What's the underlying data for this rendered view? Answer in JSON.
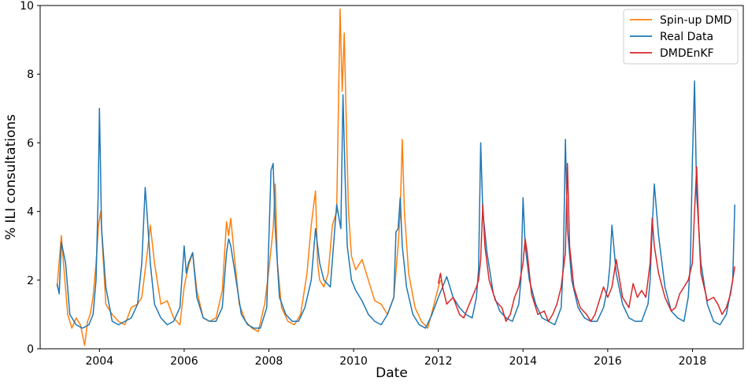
{
  "chart_data": {
    "type": "line",
    "title": "",
    "xlabel": "Date",
    "ylabel": "% ILI consultations",
    "xlim": [
      2002.6,
      2019.2
    ],
    "ylim": [
      0,
      10
    ],
    "xticks": [
      2004,
      2006,
      2008,
      2010,
      2012,
      2014,
      2016,
      2018
    ],
    "yticks": [
      0,
      2,
      4,
      6,
      8,
      10
    ],
    "grid": false,
    "legend_position": "top-right",
    "series": [
      {
        "name": "Spin-up DMD",
        "color": "#ff7f0e",
        "x": [
          2003.0,
          2003.1,
          2003.15,
          2003.25,
          2003.35,
          2003.45,
          2003.55,
          2003.65,
          2003.72,
          2003.78,
          2003.85,
          2003.92,
          2003.98,
          2004.03,
          2004.08,
          2004.15,
          2004.3,
          2004.45,
          2004.6,
          2004.75,
          2004.9,
          2005.0,
          2005.1,
          2005.2,
          2005.3,
          2005.45,
          2005.6,
          2005.75,
          2005.9,
          2006.0,
          2006.1,
          2006.2,
          2006.3,
          2006.45,
          2006.6,
          2006.75,
          2006.9,
          2007.0,
          2007.05,
          2007.1,
          2007.2,
          2007.3,
          2007.45,
          2007.6,
          2007.75,
          2007.9,
          2008.0,
          2008.1,
          2008.15,
          2008.2,
          2008.3,
          2008.45,
          2008.6,
          2008.75,
          2008.9,
          2009.0,
          2009.1,
          2009.15,
          2009.2,
          2009.3,
          2009.4,
          2009.5,
          2009.6,
          2009.68,
          2009.73,
          2009.78,
          2009.83,
          2009.88,
          2009.95,
          2010.05,
          2010.2,
          2010.35,
          2010.5,
          2010.65,
          2010.8,
          2010.95,
          2011.05,
          2011.1,
          2011.15,
          2011.2,
          2011.3,
          2011.45,
          2011.6,
          2011.75,
          2011.9,
          2012.0,
          2012.05
        ],
        "y": [
          1.8,
          3.3,
          2.5,
          1.0,
          0.6,
          0.9,
          0.7,
          0.1,
          0.8,
          1.0,
          1.5,
          2.5,
          3.6,
          4.0,
          2.8,
          1.3,
          1.0,
          0.8,
          0.7,
          1.2,
          1.3,
          1.5,
          2.5,
          3.6,
          2.5,
          1.3,
          1.4,
          0.9,
          0.7,
          1.8,
          2.4,
          2.8,
          1.7,
          0.9,
          0.8,
          0.9,
          1.7,
          3.7,
          3.3,
          3.8,
          2.5,
          1.3,
          0.8,
          0.6,
          0.5,
          1.3,
          2.3,
          3.5,
          4.8,
          2.5,
          1.2,
          0.8,
          0.7,
          1.0,
          2.2,
          3.6,
          4.6,
          2.5,
          2.0,
          1.8,
          2.2,
          3.6,
          4.0,
          9.9,
          7.5,
          9.2,
          6.5,
          4.0,
          2.7,
          2.3,
          2.6,
          2.0,
          1.4,
          1.3,
          1.0,
          1.5,
          3.0,
          4.0,
          6.1,
          4.0,
          2.2,
          1.2,
          0.8,
          0.6,
          1.3,
          1.8,
          2.0
        ]
      },
      {
        "name": "Real Data",
        "color": "#1f77b4",
        "x": [
          2003.0,
          2003.05,
          2003.1,
          2003.2,
          2003.3,
          2003.45,
          2003.6,
          2003.75,
          2003.85,
          2003.92,
          2003.97,
          2004.0,
          2004.05,
          2004.15,
          2004.3,
          2004.45,
          2004.6,
          2004.75,
          2004.9,
          2005.0,
          2005.08,
          2005.12,
          2005.2,
          2005.3,
          2005.45,
          2005.6,
          2005.75,
          2005.9,
          2006.0,
          2006.05,
          2006.1,
          2006.2,
          2006.3,
          2006.45,
          2006.6,
          2006.75,
          2006.9,
          2007.0,
          2007.05,
          2007.1,
          2007.2,
          2007.35,
          2007.5,
          2007.65,
          2007.8,
          2007.95,
          2008.05,
          2008.1,
          2008.15,
          2008.25,
          2008.4,
          2008.55,
          2008.7,
          2008.85,
          2009.0,
          2009.1,
          2009.2,
          2009.3,
          2009.45,
          2009.6,
          2009.7,
          2009.75,
          2009.8,
          2009.85,
          2009.95,
          2010.05,
          2010.2,
          2010.35,
          2010.5,
          2010.65,
          2010.8,
          2010.95,
          2011.0,
          2011.05,
          2011.1,
          2011.15,
          2011.25,
          2011.4,
          2011.55,
          2011.7,
          2011.85,
          2012.0,
          2012.1,
          2012.2,
          2012.35,
          2012.5,
          2012.65,
          2012.8,
          2012.9,
          2012.95,
          2013.0,
          2013.05,
          2013.15,
          2013.3,
          2013.45,
          2013.6,
          2013.75,
          2013.9,
          2013.95,
          2014.0,
          2014.05,
          2014.15,
          2014.3,
          2014.45,
          2014.6,
          2014.75,
          2014.9,
          2014.95,
          2015.0,
          2015.05,
          2015.15,
          2015.3,
          2015.45,
          2015.6,
          2015.75,
          2015.9,
          2016.0,
          2016.05,
          2016.1,
          2016.2,
          2016.35,
          2016.5,
          2016.65,
          2016.8,
          2016.95,
          2017.0,
          2017.05,
          2017.1,
          2017.2,
          2017.35,
          2017.5,
          2017.65,
          2017.8,
          2017.9,
          2017.95,
          2018.0,
          2018.05,
          2018.1,
          2018.2,
          2018.35,
          2018.5,
          2018.65,
          2018.8,
          2018.95,
          2019.0
        ],
        "y": [
          1.9,
          1.6,
          3.1,
          2.5,
          1.0,
          0.7,
          0.6,
          0.7,
          1.0,
          2.0,
          4.5,
          7.0,
          3.5,
          1.8,
          0.8,
          0.7,
          0.8,
          0.9,
          1.3,
          2.5,
          4.7,
          4.0,
          2.5,
          1.3,
          0.9,
          0.7,
          0.8,
          1.2,
          3.0,
          2.2,
          2.5,
          2.8,
          1.5,
          0.9,
          0.8,
          0.8,
          1.2,
          2.8,
          3.2,
          3.0,
          2.2,
          1.0,
          0.7,
          0.6,
          0.6,
          1.2,
          5.2,
          5.4,
          3.5,
          1.5,
          1.0,
          0.8,
          0.8,
          1.2,
          2.0,
          3.5,
          2.5,
          2.0,
          1.8,
          4.2,
          3.5,
          7.4,
          5.0,
          3.0,
          2.0,
          1.7,
          1.4,
          1.0,
          0.8,
          0.7,
          1.0,
          1.5,
          3.4,
          3.5,
          4.4,
          3.0,
          1.8,
          1.0,
          0.7,
          0.6,
          1.0,
          1.5,
          1.8,
          2.1,
          1.5,
          1.2,
          1.0,
          0.9,
          1.5,
          2.3,
          6.0,
          4.0,
          2.8,
          1.6,
          1.1,
          0.9,
          0.8,
          1.3,
          2.0,
          4.4,
          3.0,
          2.0,
          1.3,
          0.9,
          0.8,
          0.7,
          1.2,
          2.5,
          6.1,
          3.5,
          2.0,
          1.2,
          0.9,
          0.8,
          0.8,
          1.2,
          1.8,
          2.4,
          3.6,
          2.2,
          1.3,
          0.9,
          0.8,
          0.8,
          1.3,
          2.0,
          3.5,
          4.8,
          3.3,
          1.8,
          1.1,
          0.9,
          0.8,
          1.5,
          2.5,
          5.5,
          7.8,
          4.5,
          2.5,
          1.3,
          0.8,
          0.7,
          1.0,
          2.0,
          4.2
        ]
      },
      {
        "name": "DMDEnKF",
        "color": "#d62728",
        "x": [
          2012.0,
          2012.05,
          2012.1,
          2012.2,
          2012.35,
          2012.5,
          2012.6,
          2012.7,
          2012.8,
          2012.9,
          2012.95,
          2013.0,
          2013.05,
          2013.1,
          2013.2,
          2013.35,
          2013.5,
          2013.6,
          2013.7,
          2013.8,
          2013.9,
          2014.0,
          2014.05,
          2014.1,
          2014.2,
          2014.35,
          2014.5,
          2014.6,
          2014.7,
          2014.8,
          2014.9,
          2015.0,
          2015.05,
          2015.1,
          2015.2,
          2015.35,
          2015.5,
          2015.6,
          2015.7,
          2015.8,
          2015.9,
          2016.0,
          2016.1,
          2016.2,
          2016.35,
          2016.5,
          2016.6,
          2016.7,
          2016.8,
          2016.9,
          2017.0,
          2017.05,
          2017.1,
          2017.2,
          2017.35,
          2017.5,
          2017.6,
          2017.7,
          2017.8,
          2017.9,
          2018.0,
          2018.05,
          2018.1,
          2018.15,
          2018.2,
          2018.35,
          2018.5,
          2018.6,
          2018.7,
          2018.8,
          2018.9,
          2019.0
        ],
        "y": [
          1.9,
          2.2,
          1.8,
          1.3,
          1.5,
          1.0,
          0.9,
          1.2,
          1.5,
          1.8,
          2.0,
          2.6,
          4.2,
          3.0,
          2.0,
          1.4,
          1.2,
          0.8,
          1.0,
          1.5,
          1.8,
          2.5,
          3.2,
          2.8,
          1.6,
          1.0,
          1.1,
          0.8,
          1.0,
          1.3,
          1.8,
          2.8,
          5.4,
          3.0,
          1.8,
          1.2,
          1.0,
          0.8,
          1.0,
          1.4,
          1.8,
          1.5,
          1.8,
          2.6,
          1.5,
          1.2,
          1.9,
          1.5,
          1.7,
          1.5,
          2.5,
          3.8,
          3.0,
          2.2,
          1.5,
          1.1,
          1.2,
          1.6,
          1.8,
          2.0,
          2.5,
          4.0,
          5.3,
          3.5,
          2.2,
          1.4,
          1.5,
          1.3,
          1.0,
          1.2,
          1.6,
          2.4
        ]
      }
    ]
  }
}
